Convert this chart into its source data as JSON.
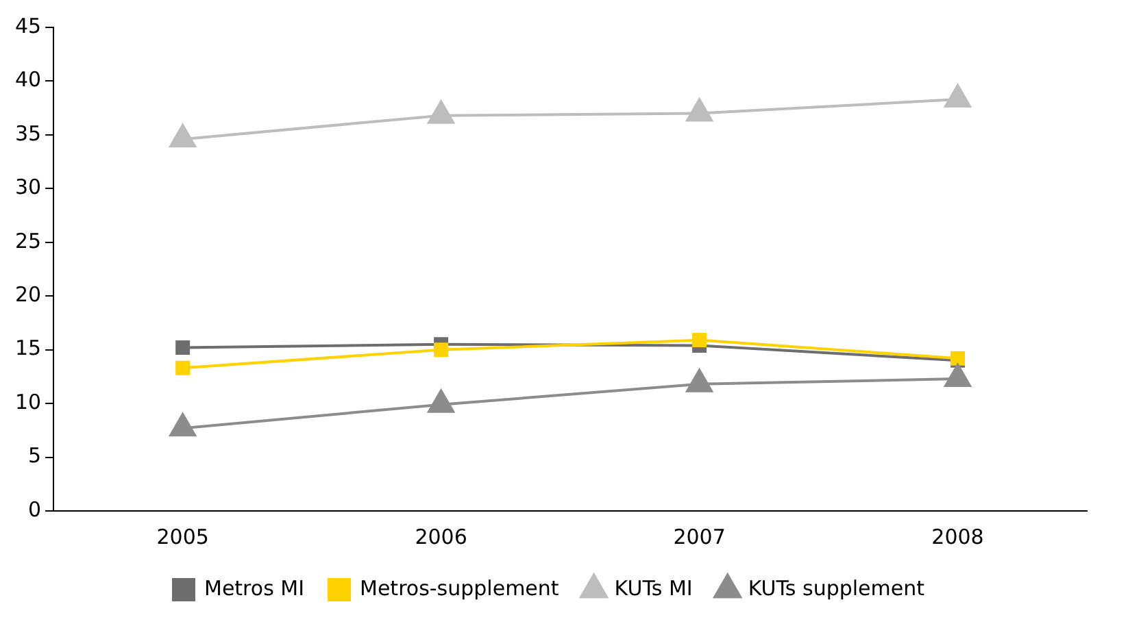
{
  "chart_data": {
    "type": "line",
    "categories": [
      "2005",
      "2006",
      "2007",
      "2008"
    ],
    "series": [
      {
        "name": "Metros MI",
        "color": "#6d6d6d",
        "marker": "square",
        "values": [
          15.2,
          15.5,
          15.4,
          14.0
        ]
      },
      {
        "name": "Metros-supplement",
        "color": "#ffd200",
        "marker": "square",
        "values": [
          13.3,
          15.0,
          15.9,
          14.2
        ]
      },
      {
        "name": "KUTs MI",
        "color": "#bdbdbd",
        "marker": "triangle",
        "values": [
          34.6,
          36.8,
          37.0,
          38.3
        ]
      },
      {
        "name": "KUTs supplement",
        "color": "#8c8c8c",
        "marker": "triangle",
        "values": [
          7.7,
          9.9,
          11.8,
          12.3
        ]
      }
    ],
    "ylim": [
      0,
      45
    ],
    "yticks": [
      0,
      5,
      10,
      15,
      20,
      25,
      30,
      35,
      40,
      45
    ],
    "grid": false,
    "legend": "bottom",
    "line_style": "solid"
  }
}
